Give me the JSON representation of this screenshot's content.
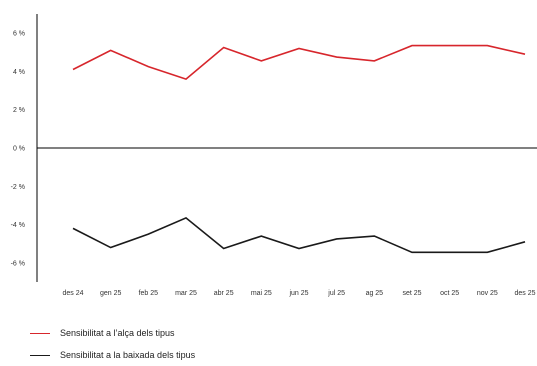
{
  "chart_data": {
    "type": "line",
    "title": "",
    "xlabel": "",
    "ylabel": "",
    "categories": [
      "des 24",
      "gen 25",
      "feb 25",
      "mar 25",
      "abr 25",
      "mai 25",
      "jun 25",
      "jul 25",
      "ag 25",
      "set 25",
      "oct 25",
      "nov 25",
      "des 25"
    ],
    "ylim": [
      -7,
      7
    ],
    "yticks": [
      -6,
      -4,
      -2,
      0,
      2,
      4,
      6
    ],
    "ytick_labels": [
      "-6 %",
      "-4 %",
      "-2 %",
      "0 %",
      "2 %",
      "4 %",
      "6 %"
    ],
    "grid": false,
    "legend_position": "bottom-left",
    "series": [
      {
        "name": "Sensibilitat a l’alça dels tipus",
        "color": "#d7262c",
        "values": [
          4.1,
          5.1,
          4.25,
          3.6,
          5.25,
          4.55,
          5.2,
          4.75,
          4.55,
          5.35,
          5.35,
          5.35,
          4.9
        ]
      },
      {
        "name": "Sensibilitat a la baixada dels tipus",
        "color": "#1a1a1a",
        "values": [
          -4.2,
          -5.2,
          -4.5,
          -3.65,
          -5.25,
          -4.6,
          -5.25,
          -4.75,
          -4.6,
          -5.45,
          -5.45,
          -5.45,
          -4.9
        ]
      }
    ]
  }
}
